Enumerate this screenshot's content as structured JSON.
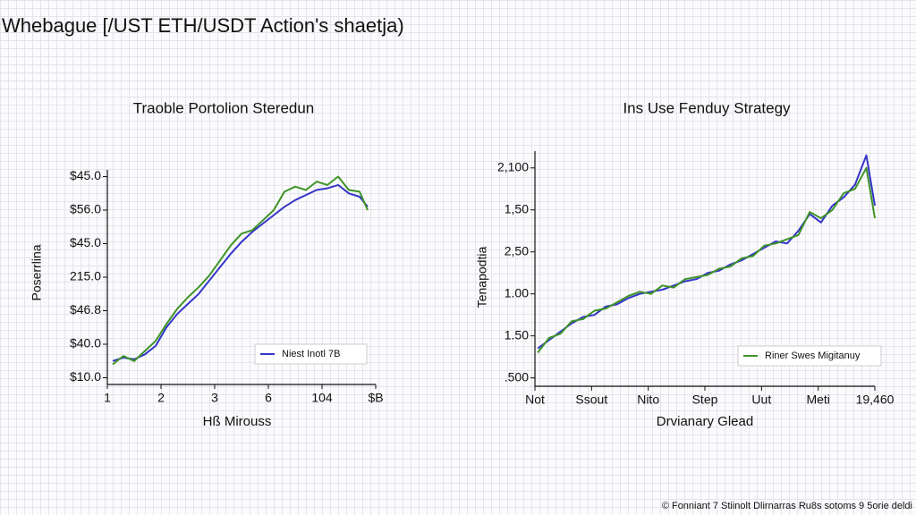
{
  "header": {
    "title": "Whebague [/UST ETH/USDT Action's shaetja)"
  },
  "footer": {
    "text": "© Fonniant 7 Stiinolt Dlirnarras Ru8s sotoms 9 5orie deldi"
  },
  "chart_data": [
    {
      "type": "line",
      "title": "Traoble Portolion Steredun",
      "x_label": "Hß Mirouss",
      "y_label": "Poserrlina",
      "xlim": [
        0,
        5
      ],
      "ylim": [
        -0.2,
        6.2
      ],
      "xticks": [
        {
          "value": 0,
          "label": "1"
        },
        {
          "value": 1,
          "label": "2"
        },
        {
          "value": 2,
          "label": "3"
        },
        {
          "value": 3,
          "label": "6"
        },
        {
          "value": 4,
          "label": "104"
        },
        {
          "value": 5,
          "label": "$B"
        }
      ],
      "yticks": [
        {
          "value": 0,
          "label": "$10.0"
        },
        {
          "value": 1,
          "label": "$40.0"
        },
        {
          "value": 2,
          "label": "$46.8"
        },
        {
          "value": 3,
          "label": "215.0"
        },
        {
          "value": 4,
          "label": "$45.0"
        },
        {
          "value": 5,
          "label": "$56.0"
        },
        {
          "value": 6,
          "label": "$45.0"
        }
      ],
      "legend": "lower right",
      "series": [
        {
          "name": "Niest Inotl 7B",
          "color": "#3535c8",
          "x": [
            0.1,
            0.3,
            0.5,
            0.7,
            0.9,
            1.1,
            1.3,
            1.5,
            1.7,
            1.9,
            2.1,
            2.3,
            2.5,
            2.7,
            2.9,
            3.1,
            3.3,
            3.5,
            3.7,
            3.9,
            4.1,
            4.3,
            4.5,
            4.7,
            4.85
          ],
          "values": [
            0.5,
            0.6,
            0.55,
            0.7,
            0.95,
            1.5,
            1.9,
            2.2,
            2.5,
            2.9,
            3.3,
            3.7,
            4.05,
            4.35,
            4.6,
            4.85,
            5.1,
            5.3,
            5.45,
            5.6,
            5.65,
            5.75,
            5.5,
            5.4,
            5.1
          ]
        },
        {
          "color": "#3f9428",
          "x": [
            0.1,
            0.3,
            0.5,
            0.7,
            0.9,
            1.1,
            1.3,
            1.5,
            1.7,
            1.9,
            2.1,
            2.3,
            2.5,
            2.7,
            2.9,
            3.1,
            3.3,
            3.5,
            3.7,
            3.9,
            4.1,
            4.3,
            4.5,
            4.7,
            4.85
          ],
          "values": [
            0.4,
            0.65,
            0.5,
            0.8,
            1.1,
            1.6,
            2.05,
            2.4,
            2.7,
            3.05,
            3.5,
            3.95,
            4.3,
            4.4,
            4.7,
            5.0,
            5.55,
            5.7,
            5.6,
            5.85,
            5.75,
            6.0,
            5.6,
            5.55,
            5.0
          ]
        }
      ]
    },
    {
      "type": "line",
      "title": "Ins Use Fenduy Strategy",
      "x_label": "Drvianary Glead",
      "y_label": "Tenapodtia",
      "xlim": [
        0,
        6
      ],
      "ylim": [
        -0.2,
        5.4
      ],
      "xticks": [
        {
          "value": 0,
          "label": "Not"
        },
        {
          "value": 1,
          "label": "Ssout"
        },
        {
          "value": 2,
          "label": "Nito"
        },
        {
          "value": 3,
          "label": "Step"
        },
        {
          "value": 4,
          "label": "Uut"
        },
        {
          "value": 5,
          "label": "Meti"
        },
        {
          "value": 6,
          "label": "19,460"
        }
      ],
      "yticks": [
        {
          "value": 0,
          "label": ".500"
        },
        {
          "value": 1,
          "label": "1.50"
        },
        {
          "value": 2,
          "label": "1.00"
        },
        {
          "value": 3,
          "label": "2,50"
        },
        {
          "value": 4,
          "label": "1,50"
        },
        {
          "value": 5,
          "label": "2,100"
        }
      ],
      "legend": "lower right",
      "series": [
        {
          "color": "#3535c8",
          "x": [
            0.05,
            0.25,
            0.45,
            0.65,
            0.85,
            1.05,
            1.25,
            1.45,
            1.65,
            1.85,
            2.05,
            2.25,
            2.45,
            2.65,
            2.85,
            3.05,
            3.25,
            3.45,
            3.65,
            3.85,
            4.05,
            4.25,
            4.45,
            4.65,
            4.85,
            5.05,
            5.25,
            5.45,
            5.65,
            5.85,
            6.0
          ],
          "values": [
            0.7,
            0.9,
            1.1,
            1.3,
            1.45,
            1.5,
            1.7,
            1.75,
            1.9,
            2.0,
            2.05,
            2.1,
            2.2,
            2.3,
            2.35,
            2.5,
            2.55,
            2.7,
            2.8,
            2.95,
            3.1,
            3.25,
            3.2,
            3.5,
            3.9,
            3.7,
            4.1,
            4.3,
            4.6,
            5.3,
            4.1
          ]
        },
        {
          "name": "Riner Swes Migitanuy",
          "color": "#3f9428",
          "x": [
            0.05,
            0.25,
            0.45,
            0.65,
            0.85,
            1.05,
            1.25,
            1.45,
            1.65,
            1.85,
            2.05,
            2.25,
            2.45,
            2.65,
            2.85,
            3.05,
            3.25,
            3.45,
            3.65,
            3.85,
            4.05,
            4.25,
            4.45,
            4.65,
            4.85,
            5.05,
            5.25,
            5.45,
            5.65,
            5.85,
            6.0
          ],
          "values": [
            0.6,
            0.95,
            1.05,
            1.35,
            1.4,
            1.6,
            1.65,
            1.8,
            1.95,
            2.05,
            2.0,
            2.2,
            2.15,
            2.35,
            2.4,
            2.45,
            2.6,
            2.65,
            2.85,
            2.9,
            3.15,
            3.2,
            3.3,
            3.4,
            3.95,
            3.8,
            4.0,
            4.4,
            4.5,
            5.0,
            3.8
          ]
        }
      ]
    }
  ]
}
